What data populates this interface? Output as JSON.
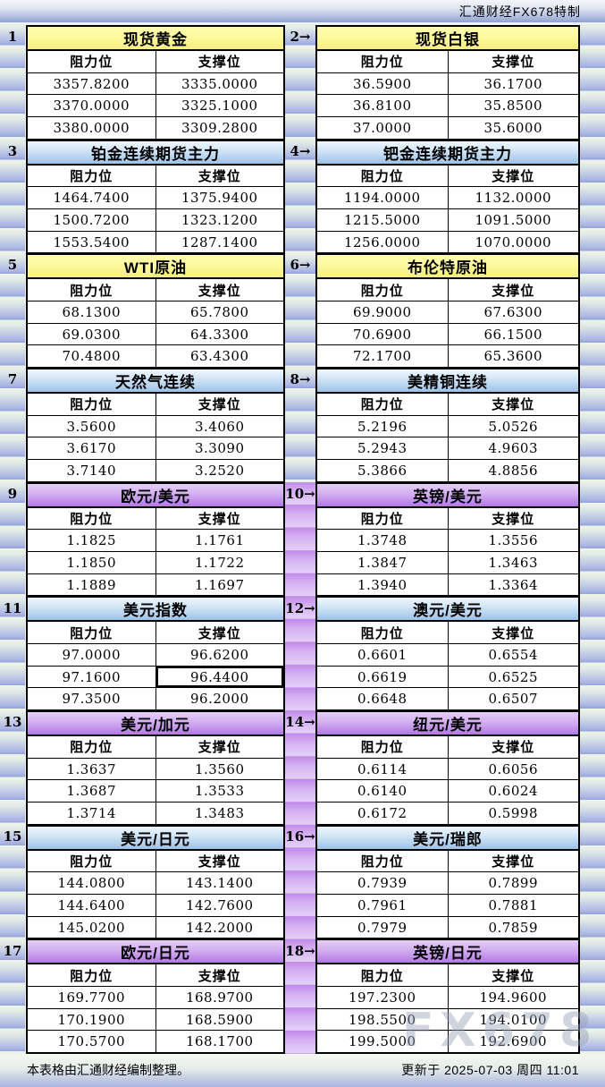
{
  "topbar": {
    "brand": "汇通财经FX678特制"
  },
  "col_headers": {
    "resistance": "阻力位",
    "support": "支撑位"
  },
  "footer": {
    "note": "本表格由汇通财经编制整理。",
    "updated": "更新于 2025-07-03 周四 11:01"
  },
  "watermark": "FX678",
  "colors": {
    "header_yellow": "#fdfa9c",
    "header_blue": "#9cc1e7",
    "header_purple": "#b278e4",
    "stripe_blue": "#aab5e5",
    "stripe_purple": "#c28ce9"
  },
  "tables": [
    {
      "label": "1",
      "title": "现货黄金",
      "theme": "yellow",
      "rows": [
        [
          "3357.8200",
          "3335.0000"
        ],
        [
          "3370.0000",
          "3325.1000"
        ],
        [
          "3380.0000",
          "3309.2800"
        ]
      ]
    },
    {
      "label": "2→",
      "title": "现货白银",
      "theme": "yellow",
      "rows": [
        [
          "36.5900",
          "36.1700"
        ],
        [
          "36.8100",
          "35.8500"
        ],
        [
          "37.0000",
          "35.6000"
        ]
      ]
    },
    {
      "label": "3",
      "title": "铂金连续期货主力",
      "theme": "blue",
      "rows": [
        [
          "1464.7400",
          "1375.9400"
        ],
        [
          "1500.7200",
          "1323.1200"
        ],
        [
          "1553.5400",
          "1287.1400"
        ]
      ]
    },
    {
      "label": "4→",
      "title": "钯金连续期货主力",
      "theme": "blue",
      "rows": [
        [
          "1194.0000",
          "1132.0000"
        ],
        [
          "1215.5000",
          "1091.5000"
        ],
        [
          "1256.0000",
          "1070.0000"
        ]
      ]
    },
    {
      "label": "5",
      "title": "WTI原油",
      "theme": "yellow",
      "rows": [
        [
          "68.1300",
          "65.7800"
        ],
        [
          "69.0300",
          "64.3300"
        ],
        [
          "70.4800",
          "63.4300"
        ]
      ]
    },
    {
      "label": "6→",
      "title": "布伦特原油",
      "theme": "yellow",
      "rows": [
        [
          "69.9000",
          "67.6300"
        ],
        [
          "70.6900",
          "66.1500"
        ],
        [
          "72.1700",
          "65.3600"
        ]
      ]
    },
    {
      "label": "7",
      "title": "天然气连续",
      "theme": "blue",
      "rows": [
        [
          "3.5600",
          "3.4060"
        ],
        [
          "3.6170",
          "3.3090"
        ],
        [
          "3.7140",
          "3.2520"
        ]
      ]
    },
    {
      "label": "8→",
      "title": "美精铜连续",
      "theme": "blue",
      "rows": [
        [
          "5.2196",
          "5.0526"
        ],
        [
          "5.2943",
          "4.9603"
        ],
        [
          "5.3866",
          "4.8856"
        ]
      ]
    },
    {
      "label": "9",
      "title": "欧元/美元",
      "theme": "purple",
      "rows": [
        [
          "1.1825",
          "1.1761"
        ],
        [
          "1.1850",
          "1.1722"
        ],
        [
          "1.1889",
          "1.1697"
        ]
      ]
    },
    {
      "label": "10→",
      "title": "英镑/美元",
      "theme": "purple",
      "rows": [
        [
          "1.3748",
          "1.3556"
        ],
        [
          "1.3847",
          "1.3463"
        ],
        [
          "1.3940",
          "1.3364"
        ]
      ]
    },
    {
      "label": "11",
      "title": "美元指数",
      "theme": "blue",
      "selected": [
        1,
        1
      ],
      "rows": [
        [
          "97.0000",
          "96.6200"
        ],
        [
          "97.1600",
          "96.4400"
        ],
        [
          "97.3500",
          "96.2000"
        ]
      ]
    },
    {
      "label": "12→",
      "title": "澳元/美元",
      "theme": "blue",
      "rows": [
        [
          "0.6601",
          "0.6554"
        ],
        [
          "0.6619",
          "0.6525"
        ],
        [
          "0.6648",
          "0.6507"
        ]
      ]
    },
    {
      "label": "13",
      "title": "美元/加元",
      "theme": "purple",
      "rows": [
        [
          "1.3637",
          "1.3560"
        ],
        [
          "1.3687",
          "1.3533"
        ],
        [
          "1.3714",
          "1.3483"
        ]
      ]
    },
    {
      "label": "14→",
      "title": "纽元/美元",
      "theme": "purple",
      "rows": [
        [
          "0.6114",
          "0.6056"
        ],
        [
          "0.6140",
          "0.6024"
        ],
        [
          "0.6172",
          "0.5998"
        ]
      ]
    },
    {
      "label": "15",
      "title": "美元/日元",
      "theme": "blue",
      "rows": [
        [
          "144.0800",
          "143.1400"
        ],
        [
          "144.6400",
          "142.7600"
        ],
        [
          "145.0200",
          "142.2000"
        ]
      ]
    },
    {
      "label": "16→",
      "title": "美元/瑞郎",
      "theme": "blue",
      "rows": [
        [
          "0.7939",
          "0.7899"
        ],
        [
          "0.7961",
          "0.7881"
        ],
        [
          "0.7979",
          "0.7859"
        ]
      ]
    },
    {
      "label": "17",
      "title": "欧元/日元",
      "theme": "purple",
      "rows": [
        [
          "169.7700",
          "168.9700"
        ],
        [
          "170.1900",
          "168.5900"
        ],
        [
          "170.5700",
          "168.1700"
        ]
      ]
    },
    {
      "label": "18→",
      "title": "英镑/日元",
      "theme": "purple",
      "rows": [
        [
          "197.2300",
          "194.9600"
        ],
        [
          "198.5500",
          "194.0100"
        ],
        [
          "199.5000",
          "192.6900"
        ]
      ]
    }
  ]
}
